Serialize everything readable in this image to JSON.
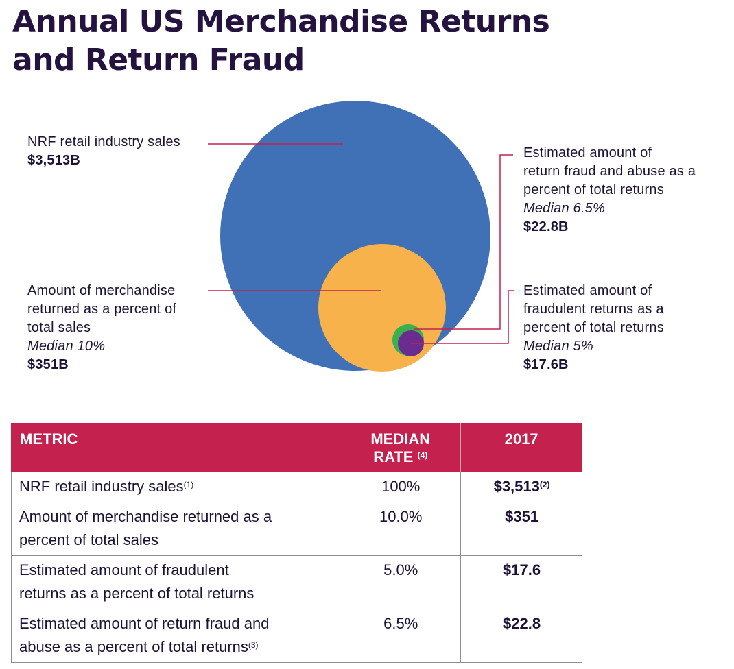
{
  "title": {
    "line1": "Annual US Merchandise Returns",
    "line2": "and Return Fraud"
  },
  "colors": {
    "sales": "#4071b6",
    "returns": "#f8b24c",
    "return_fraud_abuse": "#3bb04f",
    "fraudulent_returns": "#6a2d8f",
    "leader_line": "#c5214f",
    "header": "#c5214f"
  },
  "chart_data": {
    "type": "nested-bubble",
    "unit": "$B",
    "items": [
      {
        "label": "NRF retail industry sales",
        "median": "",
        "value_label": "$3,513B",
        "value": 3513,
        "color": "#4071b6"
      },
      {
        "label": "Amount of merchandise returned as a percent of total sales",
        "median": "Median 10%",
        "value_label": "$351B",
        "value": 351,
        "color": "#f8b24c"
      },
      {
        "label": "Estimated amount of return fraud and abuse as a percent of total returns",
        "median": "Median 6.5%",
        "value_label": "$22.8B",
        "value": 22.8,
        "color": "#3bb04f"
      },
      {
        "label": "Estimated amount of fraudulent returns as a percent of total returns",
        "median": "Median 5%",
        "value_label": "$17.6B",
        "value": 17.6,
        "color": "#6a2d8f"
      }
    ]
  },
  "callouts": {
    "sales": {
      "label": "NRF retail industry sales",
      "value": "$3,513B"
    },
    "returns": {
      "line1": "Amount of merchandise",
      "line2": "returned as a percent of",
      "line3": "total sales",
      "median": "Median 10%",
      "value": "$351B"
    },
    "fraud_abuse": {
      "line1": "Estimated amount of",
      "line2": "return fraud and abuse as a",
      "line3": "percent of total returns",
      "median": "Median 6.5%",
      "value": "$22.8B"
    },
    "fraudulent": {
      "line1": "Estimated amount of",
      "line2": "fraudulent returns as a",
      "line3": "percent of total returns",
      "median": "Median 5%",
      "value": "$17.6B"
    }
  },
  "table": {
    "headers": {
      "metric": "METRIC",
      "rate_line1": "MEDIAN",
      "rate_line2": "RATE",
      "rate_sup": "(4)",
      "year": "2017"
    },
    "rows": [
      {
        "metric_line1": "NRF retail industry sales",
        "metric_line2": "",
        "metric_sup": "(1)",
        "rate": "100%",
        "value": "$3,513",
        "value_sup": "(2)"
      },
      {
        "metric_line1": "Amount of merchandise returned as a",
        "metric_line2": "percent of total sales",
        "metric_sup": "",
        "rate": "10.0%",
        "value": "$351",
        "value_sup": ""
      },
      {
        "metric_line1": "Estimated amount of fraudulent",
        "metric_line2": "returns as a percent of total returns",
        "metric_sup": "",
        "rate": "5.0%",
        "value": "$17.6",
        "value_sup": ""
      },
      {
        "metric_line1": "Estimated amount of return fraud and",
        "metric_line2": "abuse as a percent of total returns",
        "metric_sup": "(3)",
        "rate": "6.5%",
        "value": "$22.8",
        "value_sup": ""
      }
    ]
  }
}
